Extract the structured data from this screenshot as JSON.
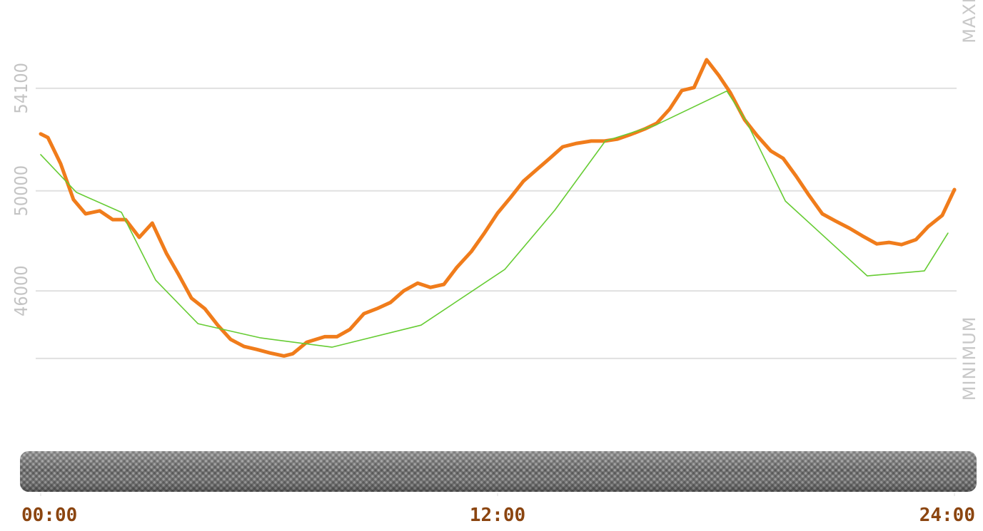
{
  "chart_data": {
    "type": "line",
    "xlim": [
      0,
      24
    ],
    "xticks": [
      {
        "value": 0,
        "label": "00:00"
      },
      {
        "value": 12,
        "label": "12:00"
      },
      {
        "value": 24,
        "label": "24:00"
      }
    ],
    "ylim": [
      42500,
      57600
    ],
    "yticks": [
      46000,
      50000,
      54100
    ],
    "grid": true,
    "reference_lines": [
      {
        "value": 43300,
        "label": "MINIMUM"
      },
      {
        "value": 57700,
        "label": "MAXIMUM"
      }
    ],
    "series": [
      {
        "color": "#f07c1b",
        "x": [
          0,
          0.19,
          0.525,
          0.86,
          1.18,
          1.55,
          1.89,
          2.23,
          2.59,
          2.93,
          3.3,
          3.62,
          3.96,
          4.31,
          4.65,
          4.99,
          5.34,
          5.68,
          6.02,
          6.39,
          6.62,
          6.99,
          7.46,
          7.78,
          8.12,
          8.49,
          8.83,
          9.19,
          9.53,
          9.9,
          10.24,
          10.59,
          10.93,
          11.31,
          11.64,
          12,
          12.34,
          12.68,
          13.03,
          13.37,
          13.71,
          14.08,
          14.46,
          14.81,
          15.15,
          15.49,
          15.86,
          16.18,
          16.52,
          16.84,
          17.16,
          17.49,
          17.81,
          18.11,
          18.49,
          18.81,
          19.18,
          19.5,
          19.84,
          20.18,
          20.53,
          20.87,
          21.24,
          21.58,
          21.96,
          22.28,
          22.61,
          22.99,
          23.31,
          23.68,
          24
        ],
        "values": [
          52275,
          52130,
          51080,
          49650,
          49080,
          49200,
          48850,
          48850,
          48140,
          48710,
          47510,
          46660,
          45710,
          45290,
          44630,
          44060,
          43780,
          43660,
          43520,
          43400,
          43490,
          43950,
          44170,
          44170,
          44460,
          45090,
          45290,
          45540,
          46000,
          46310,
          46140,
          46260,
          46940,
          47570,
          48280,
          49110,
          49730,
          50390,
          50850,
          51300,
          51760,
          51900,
          51990,
          51990,
          52070,
          52250,
          52470,
          52700,
          53270,
          54010,
          54130,
          55240,
          54610,
          53930,
          52840,
          52220,
          51590,
          51300,
          50590,
          49820,
          49080,
          48800,
          48510,
          48200,
          47880,
          47940,
          47850,
          48050,
          48570,
          49020,
          50050
        ]
      },
      {
        "color": "#66cc33",
        "x": [
          0,
          0.94,
          2.12,
          3.02,
          4.13,
          5.78,
          7.65,
          9.99,
          12.19,
          13.5,
          14.83,
          16.14,
          18.02,
          18.53,
          19.56,
          21.71,
          23.21,
          23.83
        ],
        "values": [
          51450,
          49940,
          49140,
          46430,
          44690,
          44120,
          43750,
          44630,
          46860,
          49220,
          51990,
          52620,
          53990,
          52790,
          49590,
          46600,
          46800,
          48310
        ]
      }
    ]
  }
}
